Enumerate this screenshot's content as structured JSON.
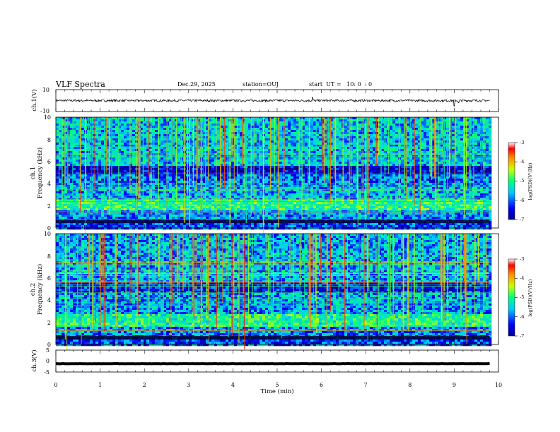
{
  "header": {
    "title": "VLF Spectra",
    "date": "Dec.29, 2025",
    "station": "station=OUJ",
    "start": "start  UT =   10: 0  : 0"
  },
  "colors": {
    "waveform": "#000000",
    "colormap": [
      "#00008f",
      "#0000ff",
      "#00c8ff",
      "#00ff80",
      "#c8ff00",
      "#ff9000",
      "#ff0000",
      "#ffffff"
    ]
  },
  "chart_data": [
    {
      "id": "ch1-waveform",
      "type": "line",
      "ylabel": "ch.1(V)",
      "ylim": [
        -10,
        10
      ],
      "yticks": [
        "10",
        "-10"
      ],
      "xlim": [
        0,
        10
      ],
      "note": "continuous waveform around 0 V, occasional spikes near t=5.8 and t=9.0 min",
      "mean": 0,
      "noise_amplitude": 1,
      "spikes": [
        {
          "t": 5.8,
          "v": 3
        },
        {
          "t": 9.0,
          "v": -5
        },
        {
          "t": 9.1,
          "v": -2
        }
      ]
    },
    {
      "id": "ch1-spectrogram",
      "type": "heatmap",
      "ylabel": "Frequency (kHz)",
      "channel_label": "ch.1",
      "ylim": [
        0,
        10
      ],
      "yticks": [
        "0",
        "2",
        "4",
        "6",
        "8",
        "10"
      ],
      "xlim": [
        0,
        10
      ],
      "colorbar": {
        "label": "log(PSD)(V²/Hz)",
        "range": [
          -7,
          -3
        ],
        "ticks": [
          "-3",
          "-4",
          "-5",
          "-6",
          "-7"
        ]
      },
      "bands_khz": [
        {
          "from": 0.0,
          "to": 0.8,
          "level": -6.2
        },
        {
          "from": 0.8,
          "to": 1.5,
          "level": -5.8
        },
        {
          "from": 1.5,
          "to": 2.6,
          "level": -5.0
        },
        {
          "from": 2.6,
          "to": 3.6,
          "level": -5.7
        },
        {
          "from": 3.6,
          "to": 4.8,
          "level": -6.0
        },
        {
          "from": 4.8,
          "to": 5.6,
          "level": -6.6
        },
        {
          "from": 5.6,
          "to": 10.0,
          "level": -5.6
        }
      ],
      "data_end_min": 9.8
    },
    {
      "id": "ch2-spectrogram",
      "type": "heatmap",
      "ylabel": "Frequency (kHz)",
      "channel_label": "ch.2",
      "ylim": [
        0,
        10
      ],
      "yticks": [
        "0",
        "2",
        "4",
        "6",
        "8",
        "10"
      ],
      "xlim": [
        0,
        10
      ],
      "colorbar": {
        "label": "log(PSD)(V²/Hz)",
        "range": [
          -7,
          -3
        ],
        "ticks": [
          "-3",
          "-4",
          "-5",
          "-6",
          "-7"
        ]
      },
      "bands_khz": [
        {
          "from": 0.0,
          "to": 0.8,
          "level": -6.2
        },
        {
          "from": 0.8,
          "to": 1.6,
          "level": -5.9
        },
        {
          "from": 1.6,
          "to": 2.8,
          "level": -5.1
        },
        {
          "from": 2.8,
          "to": 4.6,
          "level": -5.8
        },
        {
          "from": 4.6,
          "to": 5.6,
          "level": -6.4
        },
        {
          "from": 5.6,
          "to": 10.0,
          "level": -5.7
        }
      ],
      "data_end_min": 9.8
    },
    {
      "id": "ch3-waveform",
      "type": "line",
      "ylabel": "ch.3(V)",
      "ylim": [
        -5,
        5
      ],
      "yticks": [
        "5",
        "0",
        "-5"
      ],
      "xlim": [
        0,
        10
      ],
      "xlabel": "Time (min)",
      "xticks": [
        "0",
        "1",
        "2",
        "3",
        "4",
        "5",
        "6",
        "7",
        "8",
        "9",
        "10"
      ],
      "mean": -1.2,
      "noise_amplitude": 0.3
    }
  ]
}
